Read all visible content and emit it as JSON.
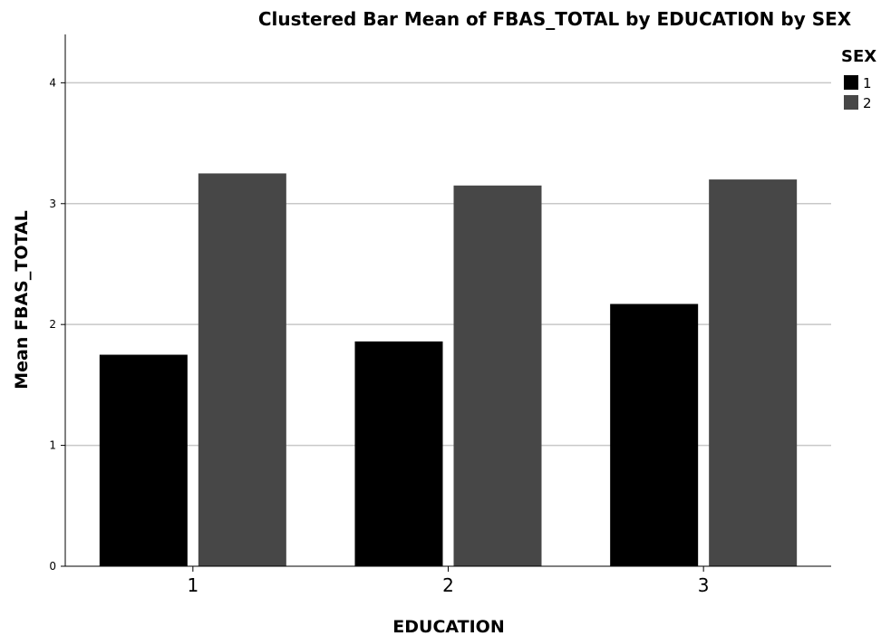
{
  "chart_data": {
    "type": "bar",
    "title": "Clustered Bar Mean of FBAS_TOTAL by EDUCATION by SEX",
    "xlabel": "EDUCATION",
    "ylabel": "Mean FBAS_TOTAL",
    "categories": [
      "1",
      "2",
      "3"
    ],
    "ylim": [
      0,
      4.4
    ],
    "yticks": [
      "0",
      "1",
      "2",
      "3",
      "4"
    ],
    "grid": true,
    "legend": {
      "title": "SEX",
      "position": "top-right"
    },
    "series": [
      {
        "name": "1",
        "color": "#000000",
        "values": [
          1.75,
          1.86,
          2.17
        ]
      },
      {
        "name": "2",
        "color": "#474747",
        "values": [
          3.25,
          3.15,
          3.2
        ]
      }
    ]
  }
}
